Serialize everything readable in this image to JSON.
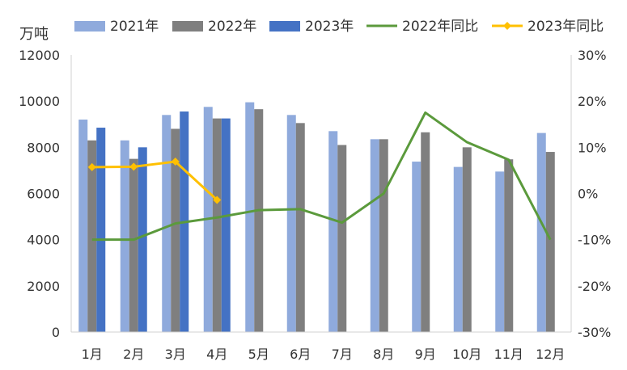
{
  "chart_data": {
    "type": "bar",
    "title": "",
    "unit_left": "万吨",
    "categories": [
      "1月",
      "2月",
      "3月",
      "4月",
      "5月",
      "6月",
      "7月",
      "8月",
      "9月",
      "10月",
      "11月",
      "12月"
    ],
    "series": [
      {
        "name": "2021年",
        "kind": "bar",
        "axis": "left",
        "color": "#8faadc",
        "values": [
          9200,
          8300,
          9400,
          9750,
          9950,
          9400,
          8700,
          8350,
          7380,
          7150,
          6950,
          8620
        ]
      },
      {
        "name": "2022年",
        "kind": "bar",
        "axis": "left",
        "color": "#7f7f7f",
        "values": [
          8300,
          7500,
          8800,
          9250,
          9650,
          9050,
          8100,
          8350,
          8650,
          8000,
          7480,
          7800
        ]
      },
      {
        "name": "2023年",
        "kind": "bar",
        "axis": "left",
        "color": "#4472c4",
        "values": [
          8850,
          8000,
          9550,
          9250,
          null,
          null,
          null,
          null,
          null,
          null,
          null,
          null
        ]
      },
      {
        "name": "2022年同比",
        "kind": "line",
        "axis": "right",
        "color": "#5b9a3c",
        "values": [
          -10.0,
          -10.0,
          -6.5,
          -5.2,
          -3.6,
          -3.4,
          -6.3,
          0.0,
          17.5,
          11.1,
          7.3,
          -10.0
        ]
      },
      {
        "name": "2023年同比",
        "kind": "line",
        "axis": "right",
        "color": "#ffc000",
        "marker": "diamond",
        "values": [
          5.7,
          5.8,
          6.9,
          -1.4,
          null,
          null,
          null,
          null,
          null,
          null,
          null,
          null
        ]
      }
    ],
    "y_left": {
      "min": 0,
      "max": 12000,
      "ticks": [
        "0",
        "2000",
        "4000",
        "6000",
        "8000",
        "10000",
        "12000"
      ]
    },
    "y_right": {
      "min": -30,
      "max": 30,
      "ticks": [
        "-30%",
        "-20%",
        "-10%",
        "0%",
        "10%",
        "20%",
        "30%"
      ]
    },
    "grid": false,
    "legend_position": "top"
  }
}
